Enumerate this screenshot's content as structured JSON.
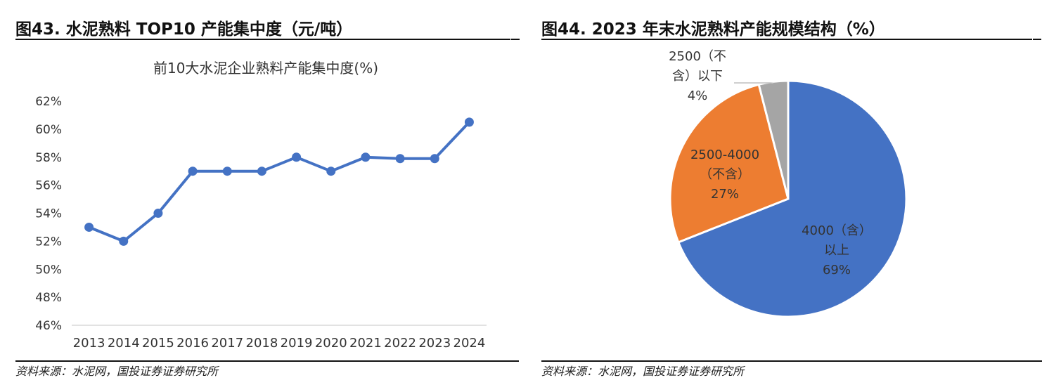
{
  "left_panel": {
    "figure_title": "图43. 水泥熟料 TOP10 产能集中度（元/吨）",
    "source": "资料来源：水泥网，国投证券证券研究所"
  },
  "right_panel": {
    "figure_title": "图44. 2023 年末水泥熟料产能规模结构（%）",
    "source": "资料来源：水泥网，国投证券证券研究所"
  },
  "chart_data": [
    {
      "type": "line",
      "title": "前10大水泥企业熟料产能集中度(%)",
      "x": [
        "2013",
        "2014",
        "2015",
        "2016",
        "2017",
        "2018",
        "2019",
        "2020",
        "2021",
        "2022",
        "2023",
        "2024"
      ],
      "series": [
        {
          "values": [
            53.0,
            52.0,
            54.0,
            57.0,
            57.0,
            57.0,
            58.0,
            57.0,
            58.0,
            57.9,
            57.9,
            60.5
          ]
        }
      ],
      "y_ticks": [
        "46%",
        "48%",
        "50%",
        "52%",
        "54%",
        "56%",
        "58%",
        "60%",
        "62%"
      ],
      "ylim": [
        46,
        62
      ],
      "grid": false,
      "legend": "none",
      "color": "#4472C4"
    },
    {
      "type": "pie",
      "slices": [
        {
          "label": "4000（含）以上",
          "lines": [
            "4000（含）",
            "以上",
            "69%"
          ],
          "value": 69,
          "color": "#4472C4"
        },
        {
          "label": "2500-4000（不含）",
          "lines": [
            "2500-4000",
            "（不含）",
            "27%"
          ],
          "value": 27,
          "color": "#ED7D31"
        },
        {
          "label": "2500（不含）以下",
          "lines": [
            "2500（不",
            "含）以下",
            "4%"
          ],
          "value": 4,
          "color": "#A5A5A5"
        }
      ],
      "legend": "none"
    }
  ]
}
